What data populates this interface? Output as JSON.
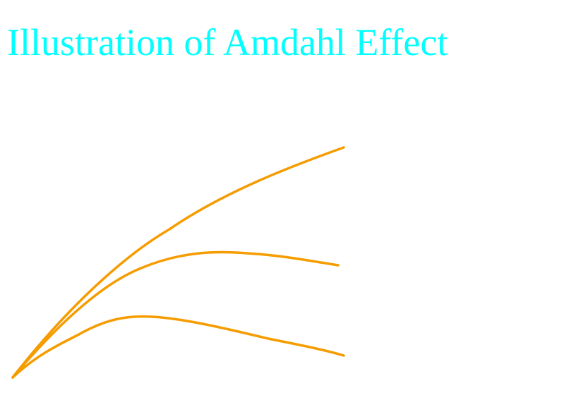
{
  "slide": {
    "title": "Illustration of Amdahl Effect"
  },
  "colors": {
    "title": "#00ffff",
    "curve": "#f59c00",
    "background": "#ffffff"
  },
  "diagram": {
    "type": "line",
    "curve_count": 3,
    "curves": [
      {
        "shape": "rising"
      },
      {
        "shape": "rise-then-slight-decline"
      },
      {
        "shape": "rise-then-decline"
      }
    ]
  }
}
